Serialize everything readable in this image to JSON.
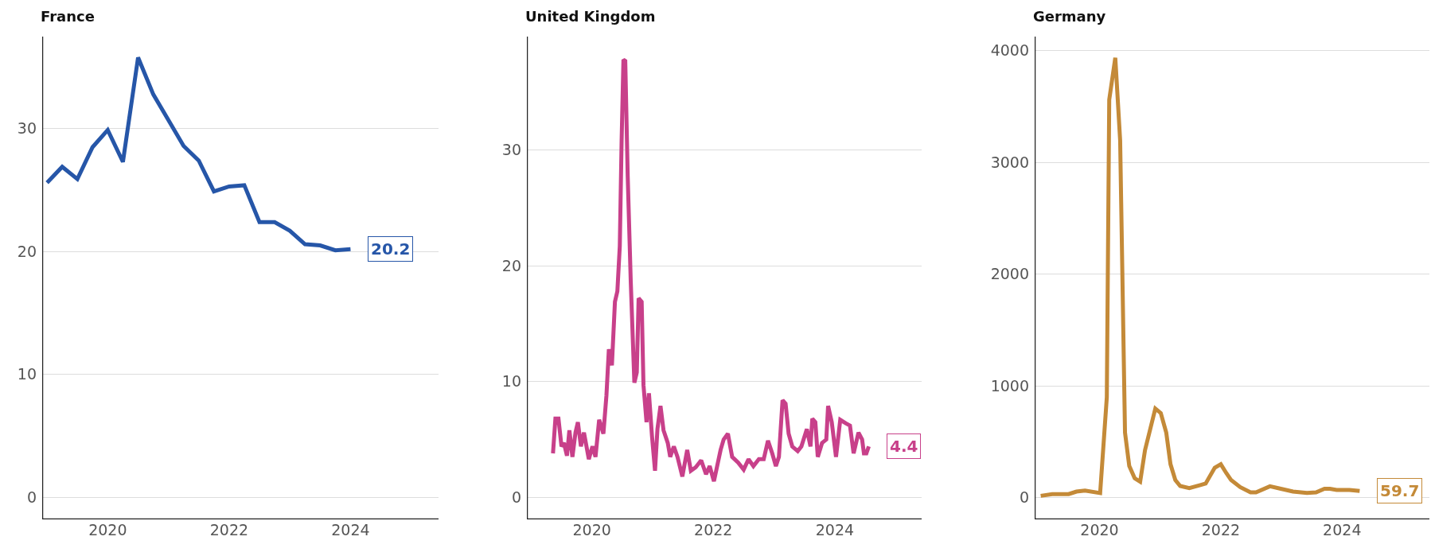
{
  "chart_data": [
    {
      "type": "line",
      "title": "France",
      "grid": "y",
      "x": [
        2019.0,
        2019.25,
        2019.5,
        2019.75,
        2020.0,
        2020.25,
        2020.5,
        2020.75,
        2021.0,
        2021.25,
        2021.5,
        2021.75,
        2022.0,
        2022.25,
        2022.5,
        2022.75,
        2023.0,
        2023.25,
        2023.5,
        2023.75,
        2024.0
      ],
      "series": [
        {
          "color": "#2656a8",
          "values": [
            25.6,
            26.9,
            25.9,
            28.5,
            29.9,
            27.3,
            35.8,
            32.8,
            30.7,
            28.6,
            27.4,
            24.9,
            25.3,
            25.4,
            22.4,
            22.4,
            21.7,
            20.6,
            20.5,
            20.1,
            20.2
          ]
        }
      ],
      "xlim": [
        2018.92,
        2025.45
      ],
      "xticks": [
        2020,
        2022,
        2024
      ],
      "ylim": [
        -1.8,
        37.5
      ],
      "yticks": [
        0,
        10,
        20,
        30
      ],
      "annotations": [
        {
          "text": "20.2",
          "x": 2024.0,
          "y": 20.2
        }
      ]
    },
    {
      "type": "line",
      "title": "United Kingdom",
      "grid": "y",
      "x": [
        2019.36,
        2019.4,
        2019.45,
        2019.5,
        2019.54,
        2019.59,
        2019.63,
        2019.68,
        2019.73,
        2019.77,
        2019.82,
        2019.87,
        2019.95,
        2020.01,
        2020.06,
        2020.12,
        2020.19,
        2020.24,
        2020.28,
        2020.33,
        2020.38,
        2020.42,
        2020.46,
        2020.49,
        2020.52,
        2020.55,
        2020.59,
        2020.64,
        2020.7,
        2020.74,
        2020.77,
        2020.82,
        2020.85,
        2020.9,
        2020.94,
        2020.99,
        2021.04,
        2021.08,
        2021.13,
        2021.18,
        2021.25,
        2021.29,
        2021.35,
        2021.41,
        2021.49,
        2021.57,
        2021.63,
        2021.71,
        2021.8,
        2021.88,
        2021.94,
        2022.01,
        2022.12,
        2022.17,
        2022.24,
        2022.31,
        2022.41,
        2022.5,
        2022.58,
        2022.66,
        2022.75,
        2022.83,
        2022.9,
        2022.97,
        2023.03,
        2023.08,
        2023.14,
        2023.19,
        2023.24,
        2023.3,
        2023.39,
        2023.45,
        2023.54,
        2023.6,
        2023.63,
        2023.68,
        2023.72,
        2023.79,
        2023.86,
        2023.89,
        2023.95,
        2024.02,
        2024.09,
        2024.18,
        2024.25,
        2024.31,
        2024.39,
        2024.45,
        2024.48,
        2024.52,
        2024.56
      ],
      "series": [
        {
          "color": "#c8408a",
          "values": [
            3.8,
            6.8,
            6.8,
            4.4,
            4.7,
            3.6,
            5.8,
            3.5,
            5.6,
            6.5,
            4.4,
            5.6,
            3.3,
            4.4,
            3.5,
            6.7,
            5.5,
            8.8,
            12.8,
            11.4,
            16.9,
            17.8,
            21.7,
            30.8,
            37.8,
            37.7,
            27.8,
            18.7,
            9.9,
            10.8,
            17.2,
            16.9,
            9.7,
            6.5,
            9.0,
            5.3,
            2.3,
            5.9,
            7.9,
            5.8,
            4.7,
            3.5,
            4.4,
            3.5,
            1.8,
            4.1,
            2.3,
            2.6,
            3.2,
            2.0,
            2.7,
            1.4,
            4.1,
            5.0,
            5.5,
            3.5,
            3.0,
            2.4,
            3.3,
            2.7,
            3.3,
            3.3,
            4.9,
            3.8,
            2.7,
            3.5,
            8.4,
            8.1,
            5.5,
            4.4,
            4.0,
            4.4,
            5.9,
            4.4,
            6.8,
            6.5,
            3.5,
            4.7,
            5.0,
            7.9,
            6.5,
            3.5,
            6.7,
            6.4,
            6.2,
            3.8,
            5.6,
            5.0,
            3.8,
            3.8,
            4.4
          ]
        }
      ],
      "xlim": [
        2018.93,
        2025.43
      ],
      "xticks": [
        2020,
        2022,
        2024
      ],
      "ylim": [
        -1.9,
        39.8
      ],
      "yticks": [
        0,
        10,
        20,
        30
      ],
      "annotations": [
        {
          "text": "4.4",
          "x": 2024.56,
          "y": 4.4
        }
      ]
    },
    {
      "type": "line",
      "title": "Germany",
      "grid": "y",
      "x": [
        2019.03,
        2019.22,
        2019.49,
        2019.62,
        2019.76,
        2020.01,
        2020.12,
        2020.16,
        2020.26,
        2020.34,
        2020.42,
        2020.49,
        2020.58,
        2020.67,
        2020.75,
        2020.92,
        2021.01,
        2021.1,
        2021.17,
        2021.25,
        2021.33,
        2021.48,
        2021.65,
        2021.75,
        2021.9,
        2022.0,
        2022.09,
        2022.17,
        2022.32,
        2022.49,
        2022.58,
        2022.81,
        2022.99,
        2023.19,
        2023.42,
        2023.57,
        2023.71,
        2023.8,
        2023.91,
        2024.12,
        2024.29
      ],
      "series": [
        {
          "color": "#c48a38",
          "values": [
            16,
            31,
            31,
            54,
            63,
            41,
            898,
            3560,
            3937,
            3197,
            583,
            283,
            173,
            142,
            425,
            797,
            756,
            583,
            299,
            157,
            104,
            85,
            110,
            126,
            268,
            299,
            220,
            157,
            94,
            47,
            47,
            101,
            79,
            54,
            41,
            47,
            79,
            79,
            69,
            69,
            59.7
          ]
        }
      ],
      "xlim": [
        2018.93,
        2025.44
      ],
      "xticks": [
        2020,
        2022,
        2024
      ],
      "ylim": [
        -195,
        4126
      ],
      "yticks": [
        0,
        1000,
        2000,
        3000,
        4000
      ],
      "annotations": [
        {
          "text": "59.7",
          "x": 2024.29,
          "y": 59.7
        }
      ]
    }
  ]
}
